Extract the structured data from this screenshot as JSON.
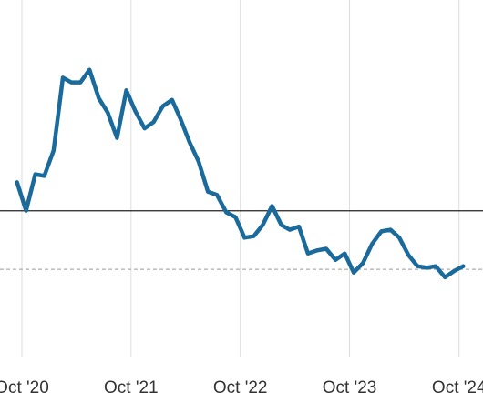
{
  "chart_data": {
    "type": "line",
    "title": "",
    "xlabel": "",
    "ylabel": "",
    "x_tick_labels": [
      "Oct '20",
      "Oct '21",
      "Oct '22",
      "Oct '23",
      "Oct '24"
    ],
    "xlim": [
      "2020-07-20",
      "2024-12-20"
    ],
    "ylim": [
      -9.2,
      13.3
    ],
    "grid": {
      "vertical": true,
      "horizontal": false
    },
    "reference_lines": [
      {
        "y": 0,
        "style": "solid",
        "color": "#222222"
      },
      {
        "y": -3.7,
        "style": "dashed",
        "color": "#9a9a9a"
      }
    ],
    "series": [
      {
        "color": "#1b6a9c",
        "points": [
          [
            "2020-09-15",
            1.8
          ],
          [
            "2020-10-15",
            0.0
          ],
          [
            "2020-11-15",
            2.3
          ],
          [
            "2020-12-15",
            2.2
          ],
          [
            "2021-01-15",
            3.8
          ],
          [
            "2021-02-15",
            8.4
          ],
          [
            "2021-03-15",
            8.1
          ],
          [
            "2021-04-15",
            8.1
          ],
          [
            "2021-05-15",
            8.9
          ],
          [
            "2021-06-15",
            7.1
          ],
          [
            "2021-07-15",
            6.2
          ],
          [
            "2021-08-15",
            4.6
          ],
          [
            "2021-09-15",
            7.6
          ],
          [
            "2021-10-15",
            6.3
          ],
          [
            "2021-11-15",
            5.2
          ],
          [
            "2021-12-15",
            5.6
          ],
          [
            "2022-01-15",
            6.6
          ],
          [
            "2022-02-15",
            7.0
          ],
          [
            "2022-03-15",
            5.8
          ],
          [
            "2022-04-15",
            4.3
          ],
          [
            "2022-05-15",
            3.1
          ],
          [
            "2022-06-15",
            1.2
          ],
          [
            "2022-07-15",
            1.0
          ],
          [
            "2022-08-15",
            -0.1
          ],
          [
            "2022-09-15",
            -0.4
          ],
          [
            "2022-10-15",
            -1.7
          ],
          [
            "2022-11-15",
            -1.6
          ],
          [
            "2022-12-15",
            -0.9
          ],
          [
            "2023-01-15",
            0.3
          ],
          [
            "2023-02-15",
            -0.9
          ],
          [
            "2023-03-15",
            -1.2
          ],
          [
            "2023-04-15",
            -1.0
          ],
          [
            "2023-05-15",
            -2.7
          ],
          [
            "2023-06-15",
            -2.5
          ],
          [
            "2023-07-15",
            -2.4
          ],
          [
            "2023-08-15",
            -3.1
          ],
          [
            "2023-09-15",
            -2.7
          ],
          [
            "2023-10-15",
            -3.9
          ],
          [
            "2023-11-15",
            -3.3
          ],
          [
            "2023-12-15",
            -2.1
          ],
          [
            "2024-01-15",
            -1.3
          ],
          [
            "2024-02-15",
            -1.2
          ],
          [
            "2024-03-15",
            -1.7
          ],
          [
            "2024-04-15",
            -2.8
          ],
          [
            "2024-05-15",
            -3.5
          ],
          [
            "2024-06-15",
            -3.6
          ],
          [
            "2024-07-15",
            -3.5
          ],
          [
            "2024-08-15",
            -4.2
          ],
          [
            "2024-09-15",
            -3.8
          ],
          [
            "2024-10-15",
            -3.5
          ]
        ]
      }
    ]
  }
}
